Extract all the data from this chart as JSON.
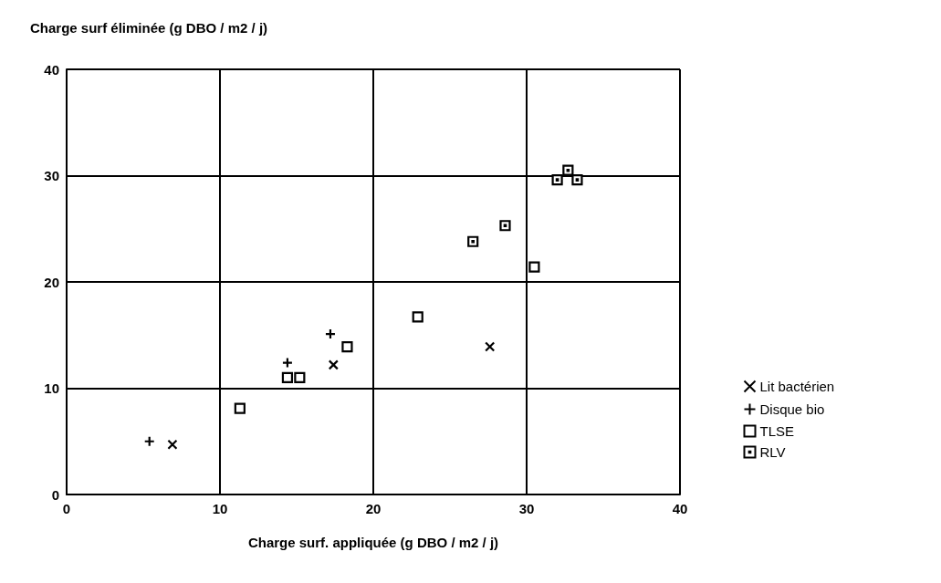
{
  "chart_data": {
    "type": "scatter",
    "xlabel": "Charge surf. appliquée (g DBO / m2 / j)",
    "ylabel": "Charge surf éliminée (g DBO / m2 / j)",
    "xlim": [
      0,
      40
    ],
    "xticks": [
      0,
      10,
      20,
      30,
      40
    ],
    "ylim": [
      0,
      40
    ],
    "yticks": [
      0,
      10,
      20,
      30,
      40
    ],
    "grid": true,
    "legend": "right",
    "series": [
      {
        "name": "Lit bactérien",
        "color": "#000000",
        "marker": "cross",
        "x": [
          6.9,
          17.4,
          27.6
        ],
        "values": [
          4.7,
          12.2,
          13.9
        ]
      },
      {
        "name": "Disque bio",
        "color": "#000000",
        "marker": "plus",
        "x": [
          5.4,
          14.4,
          17.2
        ],
        "values": [
          5.0,
          12.4,
          15.1
        ]
      },
      {
        "name": "TLSE",
        "color": "#000000",
        "marker": "square",
        "x": [
          11.3,
          14.4,
          15.2,
          18.3,
          22.9,
          30.5
        ],
        "values": [
          8.1,
          11.0,
          11.0,
          13.9,
          16.7,
          21.4
        ]
      },
      {
        "name": "RLV",
        "color": "#000000",
        "marker": "square-dot",
        "x": [
          26.5,
          28.6,
          32.0,
          32.7,
          33.3
        ],
        "values": [
          23.8,
          25.3,
          29.6,
          30.5,
          29.6
        ]
      }
    ]
  }
}
